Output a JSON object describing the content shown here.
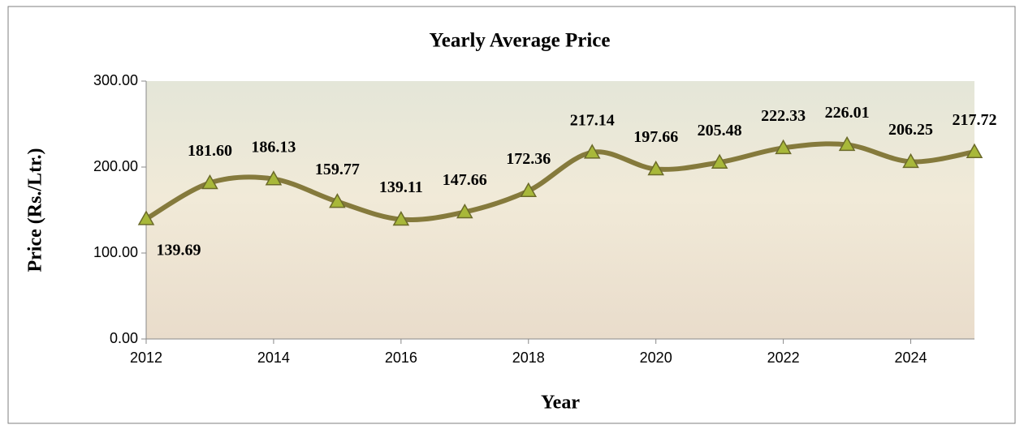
{
  "chart_data": {
    "type": "line",
    "title": "Yearly Average Price",
    "x_label": "Year",
    "y_label": "Price (Rs./Ltr.)",
    "x": [
      2012,
      2013,
      2014,
      2015,
      2016,
      2017,
      2018,
      2019,
      2020,
      2021,
      2022,
      2023,
      2024,
      2025
    ],
    "values": [
      139.69,
      181.6,
      186.13,
      159.77,
      139.11,
      147.66,
      172.36,
      217.14,
      197.66,
      205.48,
      222.33,
      226.01,
      206.25,
      217.72
    ],
    "value_labels": [
      "139.69",
      "181.60",
      "186.13",
      "159.77",
      "139.11",
      "147.66",
      "172.36",
      "217.14",
      "197.66",
      "205.48",
      "222.33",
      "226.01",
      "206.25",
      "217.72"
    ],
    "color": "#857a3c",
    "marker_color": "#a8b83a",
    "xlim": [
      2012,
      2025
    ],
    "xticks": [
      2012,
      2014,
      2016,
      2018,
      2020,
      2022,
      2024
    ],
    "ylim": [
      0,
      300
    ],
    "yticks": [
      {
        "value": 0,
        "label": "0.00"
      },
      {
        "value": 100,
        "label": "100.00"
      },
      {
        "value": 200,
        "label": "200.00"
      },
      {
        "value": 300,
        "label": "300.00"
      }
    ],
    "smooth": true
  }
}
